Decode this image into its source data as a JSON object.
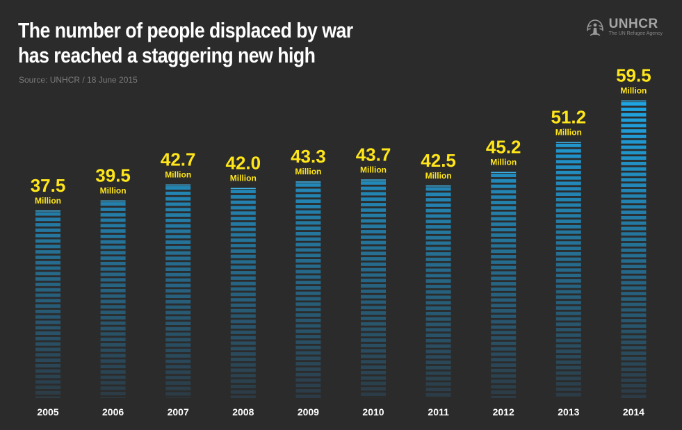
{
  "header": {
    "title_line1": "The number of people displaced by war",
    "title_line2": "has reached a staggering new high",
    "source": "Source: UNHCR / 18 June 2015"
  },
  "logo": {
    "name": "UNHCR",
    "subtitle": "The UN Refugee Agency",
    "icon": "unhcr-emblem-icon"
  },
  "chart_data": {
    "type": "bar",
    "title": "The number of people displaced by war has reached a staggering new high",
    "categories": [
      "2005",
      "2006",
      "2007",
      "2008",
      "2009",
      "2010",
      "2011",
      "2012",
      "2013",
      "2014"
    ],
    "values": [
      37.5,
      39.5,
      42.7,
      42.0,
      43.3,
      43.7,
      42.5,
      45.2,
      51.2,
      59.5
    ],
    "value_labels": [
      "37.5",
      "39.5",
      "42.7",
      "42.0",
      "43.3",
      "43.7",
      "42.5",
      "45.2",
      "51.2",
      "59.5"
    ],
    "unit_label": "Million",
    "xlabel": "",
    "ylabel": "",
    "grid": false,
    "legend": "none",
    "colors": {
      "background": "#2b2b2b",
      "bar_top": "#1fa7e6",
      "bar_bottom": "#2c3a44",
      "value_label": "#ffe61a",
      "axis_label": "#ffffff"
    }
  }
}
